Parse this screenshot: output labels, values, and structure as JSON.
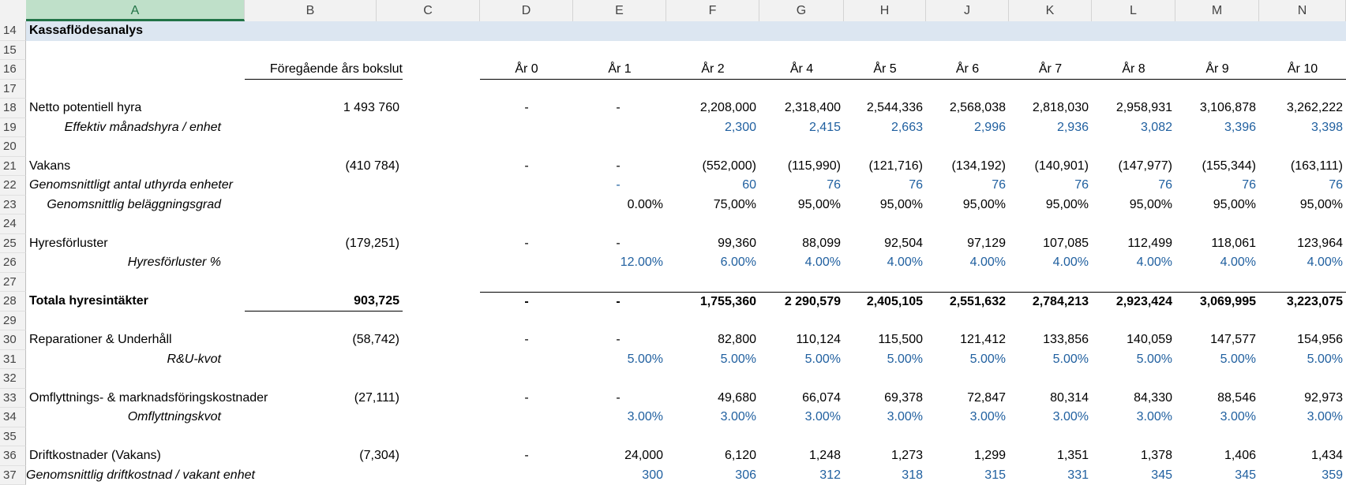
{
  "columns": [
    "A",
    "B",
    "C",
    "D",
    "E",
    "F",
    "G",
    "H",
    "J",
    "K",
    "L",
    "M",
    "N"
  ],
  "selected_column": "A",
  "rows": {
    "r14": {
      "num": "14",
      "title": "Kassaflödesanalys"
    },
    "r15": {
      "num": "15"
    },
    "r16": {
      "num": "16",
      "b": "Föregående års bokslut",
      "years": [
        "År 0",
        "År 1",
        "År 2",
        "År 4",
        "År 5",
        "År 6",
        "År 7",
        "År 8",
        "År 9",
        "År 10"
      ]
    },
    "r17": {
      "num": "17"
    },
    "r18": {
      "num": "18",
      "label": "Netto potentiell hyra",
      "b": "1 493 760",
      "d": "-",
      "e": "-",
      "vals": [
        "2,208,000",
        "2,318,400",
        "2,544,336",
        "2,568,038",
        "2,818,030",
        "2,958,931",
        "3,106,878",
        "3,262,222"
      ]
    },
    "r19": {
      "num": "19",
      "label": "Effektiv månadshyra / enhet",
      "vals": [
        "2,300",
        "2,415",
        "2,663",
        "2,996",
        "2,936",
        "3,082",
        "3,396",
        "3,398"
      ]
    },
    "r20": {
      "num": "20"
    },
    "r21": {
      "num": "21",
      "label": "Vakans",
      "b": "(410 784)",
      "d": "-",
      "e": "-",
      "vals": [
        "(552,000)",
        "(115,990)",
        "(121,716)",
        "(134,192)",
        "(140,901)",
        "(147,977)",
        "(155,344)",
        "(163,111)"
      ]
    },
    "r22": {
      "num": "22",
      "label": "Genomsnittligt antal uthyrda enheter",
      "e": "-",
      "vals": [
        "60",
        "76",
        "76",
        "76",
        "76",
        "76",
        "76",
        "76"
      ]
    },
    "r23": {
      "num": "23",
      "label": "Genomsnittlig beläggningsgrad",
      "e": "0.00%",
      "vals": [
        "75,00%",
        "95,00%",
        "95,00%",
        "95,00%",
        "95,00%",
        "95,00%",
        "95,00%",
        "95,00%"
      ]
    },
    "r24": {
      "num": "24"
    },
    "r25": {
      "num": "25",
      "label": "Hyresförluster",
      "b": "(179,251)",
      "d": "-",
      "e": "-",
      "vals": [
        "99,360",
        "88,099",
        "92,504",
        "97,129",
        "107,085",
        "112,499",
        "118,061",
        "123,964"
      ]
    },
    "r26": {
      "num": "26",
      "label": "Hyresförluster %",
      "e": "12.00%",
      "vals": [
        "6.00%",
        "4.00%",
        "4.00%",
        "4.00%",
        "4.00%",
        "4.00%",
        "4.00%",
        "4.00%"
      ]
    },
    "r27": {
      "num": "27"
    },
    "r28": {
      "num": "28",
      "label": "Totala hyresintäkter",
      "b": "903,725",
      "d": "-",
      "e": "-",
      "vals": [
        "1,755,360",
        "2 290,579",
        "2,405,105",
        "2,551,632",
        "2,784,213",
        "2,923,424",
        "3,069,995",
        "3,223,075"
      ]
    },
    "r29": {
      "num": "29"
    },
    "r30": {
      "num": "30",
      "label": "Reparationer & Underhåll",
      "b": "(58,742)",
      "d": "-",
      "e": "-",
      "vals": [
        "82,800",
        "110,124",
        "115,500",
        "121,412",
        "133,856",
        "140,059",
        "147,577",
        "154,956"
      ]
    },
    "r31": {
      "num": "31",
      "label": "R&U-kvot",
      "e": "5.00%",
      "vals": [
        "5.00%",
        "5.00%",
        "5.00%",
        "5.00%",
        "5.00%",
        "5.00%",
        "5.00%",
        "5.00%"
      ]
    },
    "r32": {
      "num": "32"
    },
    "r33": {
      "num": "33",
      "label": "Omflyttnings- & marknadsföringskostnader",
      "b": "(27,111)",
      "d": "-",
      "e": "-",
      "vals": [
        "49,680",
        "66,074",
        "69,378",
        "72,847",
        "80,314",
        "84,330",
        "88,546",
        "92,973"
      ]
    },
    "r34": {
      "num": "34",
      "label": "Omflyttningskvot",
      "e": "3.00%",
      "vals": [
        "3.00%",
        "3.00%",
        "3.00%",
        "3.00%",
        "3.00%",
        "3.00%",
        "3.00%",
        "3.00%"
      ]
    },
    "r35": {
      "num": "35"
    },
    "r36": {
      "num": "36",
      "label": "Driftkostnader (Vakans)",
      "b": "(7,304)",
      "d": "-",
      "e": "24,000",
      "vals": [
        "6,120",
        "1,248",
        "1,273",
        "1,299",
        "1,351",
        "1,378",
        "1,406",
        "1,434"
      ]
    },
    "r37": {
      "num": "37",
      "label": "Genomsnittlig driftkostnad / vakant enhet",
      "e": "300",
      "vals": [
        "306",
        "312",
        "318",
        "315",
        "331",
        "345",
        "345",
        "359"
      ]
    }
  },
  "colors": {
    "selected_header": "#bfe0c9",
    "band": "#dce6f1",
    "blue_text": "#1f5f9f"
  }
}
